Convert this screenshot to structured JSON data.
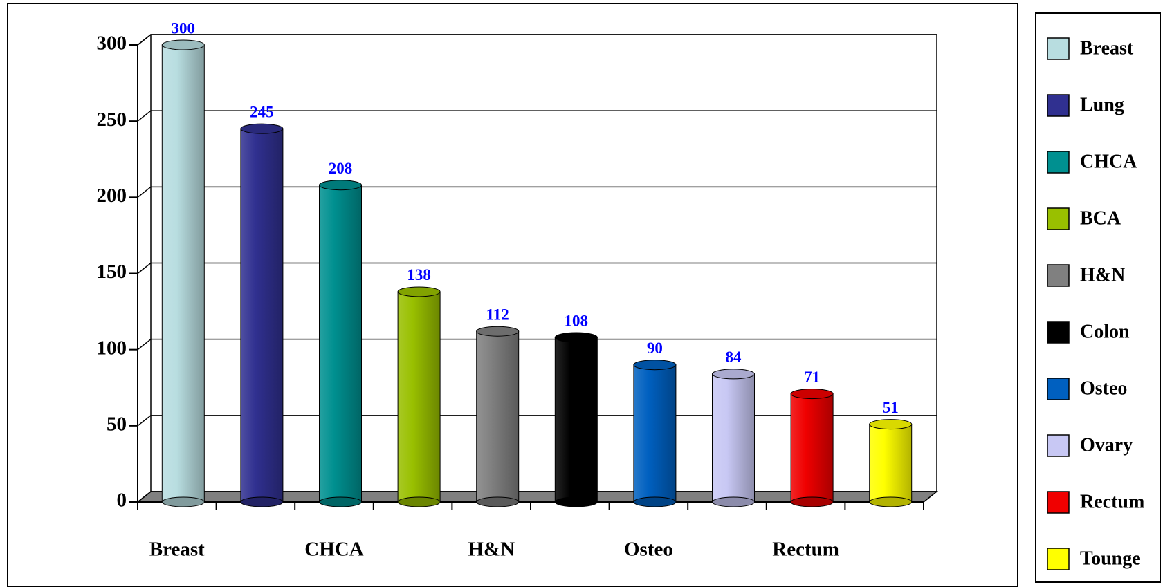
{
  "chart_data": {
    "type": "bar3d",
    "categories": [
      "Breast",
      "Lung",
      "CHCA",
      "BCA",
      "H&N",
      "Colon",
      "Osteo",
      "Ovary",
      "Rectum",
      "Tounge"
    ],
    "xtick_labels": [
      "Breast",
      null,
      "CHCA",
      null,
      "H&N",
      null,
      "Osteo",
      null,
      "Rectum",
      null
    ],
    "values": [
      300,
      245,
      208,
      138,
      112,
      108,
      90,
      84,
      71,
      51
    ],
    "colors": [
      "#b8dde0",
      "#303090",
      "#009090",
      "#99c000",
      "#808080",
      "#000000",
      "#0060c0",
      "#c8c8f4",
      "#f00000",
      "#ffff00"
    ],
    "ylim": [
      0,
      300
    ],
    "yticks": [
      0,
      50,
      100,
      150,
      200,
      250,
      300
    ],
    "grid": true,
    "legend": "right"
  }
}
